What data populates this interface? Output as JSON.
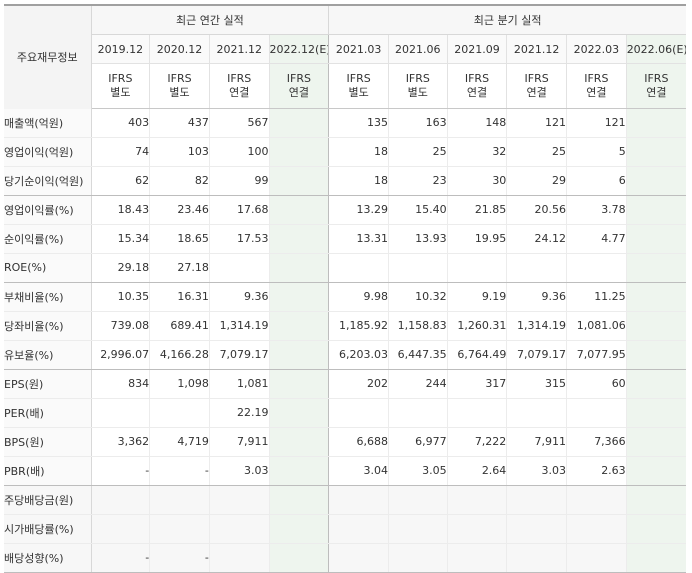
{
  "corner_label": "주요재무정보",
  "annual_header": "최근 연간 실적",
  "quarter_header": "최근 분기 실적",
  "periods": [
    {
      "label": "2019.12",
      "acc1": "IFRS",
      "acc2": "별도",
      "est": false
    },
    {
      "label": "2020.12",
      "acc1": "IFRS",
      "acc2": "별도",
      "est": false
    },
    {
      "label": "2021.12",
      "acc1": "IFRS",
      "acc2": "연결",
      "est": false
    },
    {
      "label": "2022.12(E)",
      "acc1": "IFRS",
      "acc2": "연결",
      "est": true
    },
    {
      "label": "2021.03",
      "acc1": "IFRS",
      "acc2": "별도",
      "est": false
    },
    {
      "label": "2021.06",
      "acc1": "IFRS",
      "acc2": "별도",
      "est": false
    },
    {
      "label": "2021.09",
      "acc1": "IFRS",
      "acc2": "연결",
      "est": false
    },
    {
      "label": "2021.12",
      "acc1": "IFRS",
      "acc2": "연결",
      "est": false
    },
    {
      "label": "2022.03",
      "acc1": "IFRS",
      "acc2": "연결",
      "est": false
    },
    {
      "label": "2022.06(E)",
      "acc1": "IFRS",
      "acc2": "연결",
      "est": true
    }
  ],
  "rows": [
    {
      "label": "매출액(억원)",
      "values": [
        "403",
        "437",
        "567",
        "",
        "135",
        "163",
        "148",
        "121",
        "121",
        ""
      ]
    },
    {
      "label": "영업이익(억원)",
      "values": [
        "74",
        "103",
        "100",
        "",
        "18",
        "25",
        "32",
        "25",
        "5",
        ""
      ]
    },
    {
      "label": "당기순이익(억원)",
      "values": [
        "62",
        "82",
        "99",
        "",
        "18",
        "23",
        "30",
        "29",
        "6",
        ""
      ]
    },
    {
      "label": "영업이익률(%)",
      "values": [
        "18.43",
        "23.46",
        "17.68",
        "",
        "13.29",
        "15.40",
        "21.85",
        "20.56",
        "3.78",
        ""
      ]
    },
    {
      "label": "순이익률(%)",
      "values": [
        "15.34",
        "18.65",
        "17.53",
        "",
        "13.31",
        "13.93",
        "19.95",
        "24.12",
        "4.77",
        ""
      ]
    },
    {
      "label": "ROE(%)",
      "values": [
        "29.18",
        "27.18",
        "",
        "",
        "",
        "",
        "",
        "",
        "",
        ""
      ]
    },
    {
      "label": "부채비율(%)",
      "values": [
        "10.35",
        "16.31",
        "9.36",
        "",
        "9.98",
        "10.32",
        "9.19",
        "9.36",
        "11.25",
        ""
      ]
    },
    {
      "label": "당좌비율(%)",
      "values": [
        "739.08",
        "689.41",
        "1,314.19",
        "",
        "1,185.92",
        "1,158.83",
        "1,260.31",
        "1,314.19",
        "1,081.06",
        ""
      ]
    },
    {
      "label": "유보율(%)",
      "values": [
        "2,996.07",
        "4,166.28",
        "7,079.17",
        "",
        "6,203.03",
        "6,447.35",
        "6,764.49",
        "7,079.17",
        "7,077.95",
        ""
      ]
    },
    {
      "label": "EPS(원)",
      "values": [
        "834",
        "1,098",
        "1,081",
        "",
        "202",
        "244",
        "317",
        "315",
        "60",
        ""
      ]
    },
    {
      "label": "PER(배)",
      "values": [
        "",
        "",
        "22.19",
        "",
        "",
        "",
        "",
        "",
        "",
        ""
      ]
    },
    {
      "label": "BPS(원)",
      "values": [
        "3,362",
        "4,719",
        "7,911",
        "",
        "6,688",
        "6,977",
        "7,222",
        "7,911",
        "7,366",
        ""
      ]
    },
    {
      "label": "PBR(배)",
      "values": [
        "-",
        "-",
        "3.03",
        "",
        "3.04",
        "3.05",
        "2.64",
        "3.03",
        "2.63",
        ""
      ]
    },
    {
      "label": "주당배당금(원)",
      "values": [
        "",
        "",
        "",
        "",
        "",
        "",
        "",
        "",
        "",
        ""
      ]
    },
    {
      "label": "시가배당률(%)",
      "values": [
        "",
        "",
        "",
        "",
        "",
        "",
        "",
        "",
        "",
        ""
      ]
    },
    {
      "label": "배당성향(%)",
      "values": [
        "-",
        "-",
        "",
        "",
        "",
        "",
        "",
        "",
        "",
        ""
      ]
    }
  ]
}
